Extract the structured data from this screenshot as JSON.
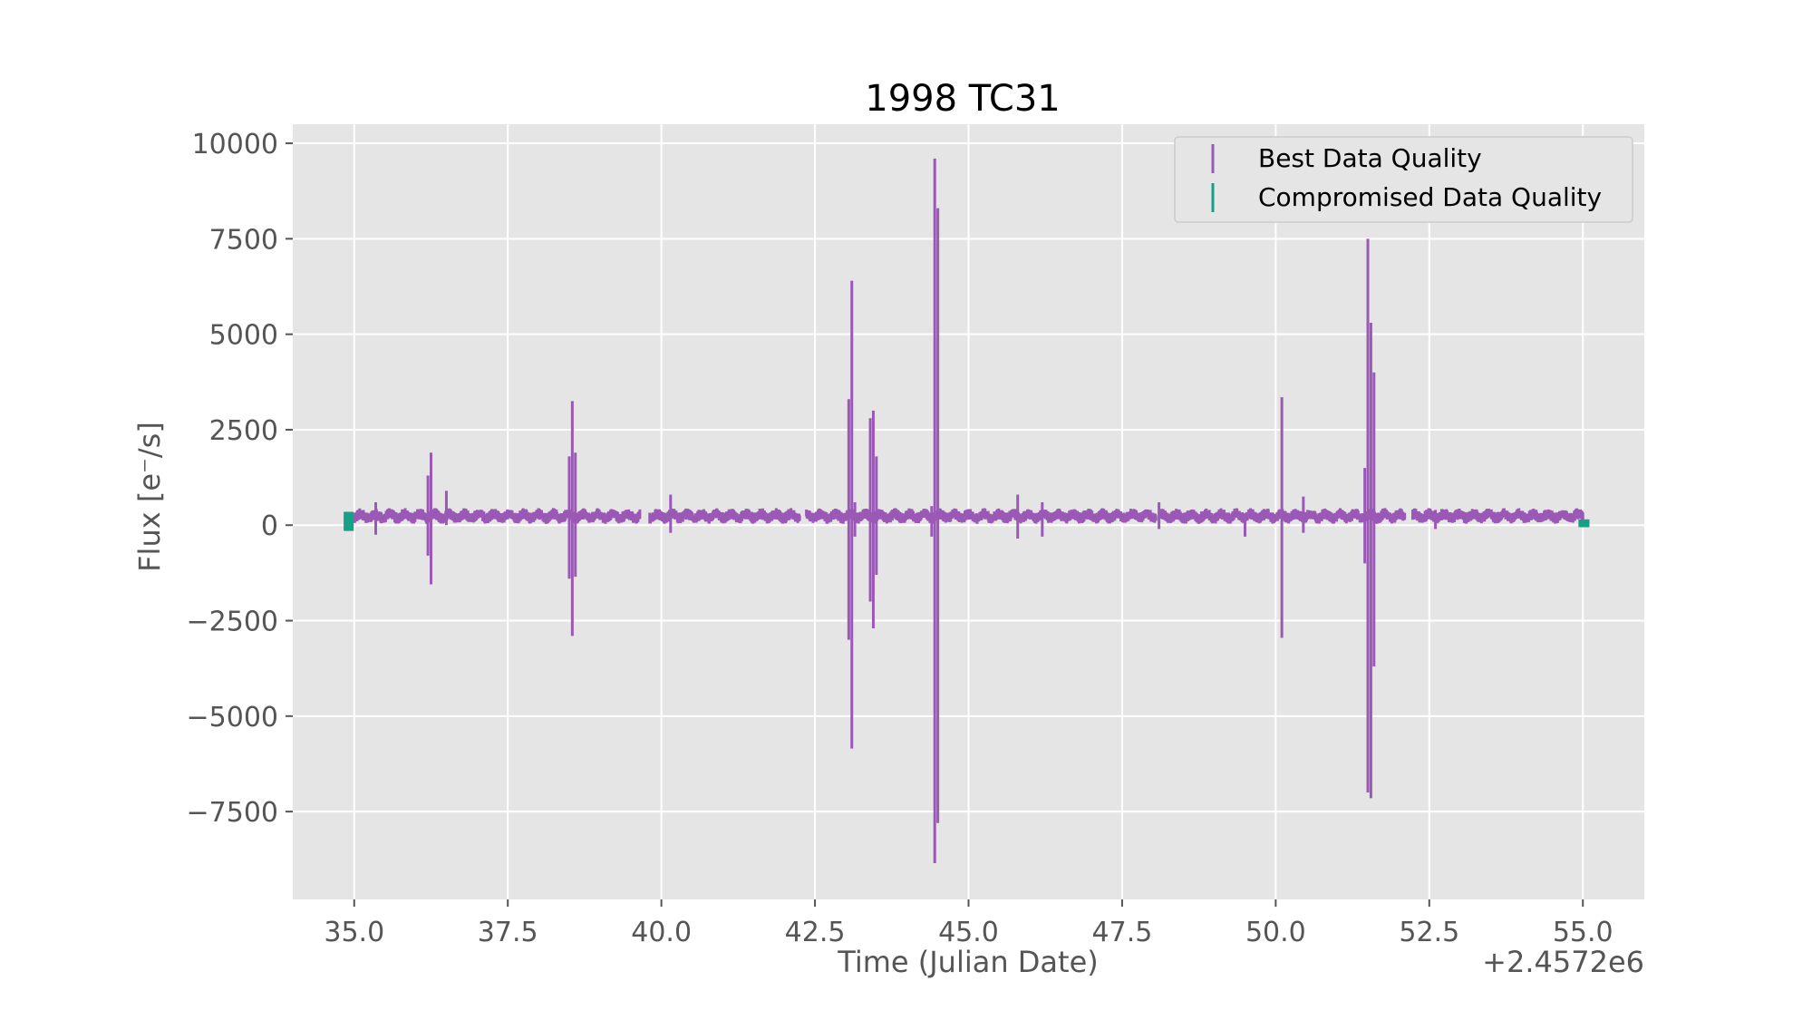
{
  "chart_data": {
    "type": "scatter",
    "title": "1998 TC31",
    "xlabel": "Time (Julian Date)",
    "ylabel": "Flux [e$^-$/s]",
    "ylabel_display": "Flux [e⁻/s]",
    "x_offset_label": "+2.4572e6",
    "xlim": [
      34.0,
      56.0
    ],
    "ylim": [
      -9800,
      10500
    ],
    "xticks": [
      35.0,
      37.5,
      40.0,
      42.5,
      45.0,
      47.5,
      50.0,
      52.5,
      55.0
    ],
    "xtick_labels": [
      "35.0",
      "37.5",
      "40.0",
      "42.5",
      "45.0",
      "47.5",
      "50.0",
      "52.5",
      "55.0"
    ],
    "yticks": [
      10000,
      7500,
      5000,
      2500,
      0,
      -2500,
      -5000,
      -7500
    ],
    "ytick_labels": [
      "10000",
      "7500",
      "5000",
      "2500",
      "0",
      "−2500",
      "−5000",
      "−7500"
    ],
    "grid": true,
    "legend_position": "top-right",
    "series": [
      {
        "name": "Best Data Quality",
        "color": "#9b59b6",
        "baseline_flux": 240,
        "x_range": [
          34.95,
          55.0
        ],
        "spikes": [
          {
            "x": 35.35,
            "high": 600,
            "low": -250
          },
          {
            "x": 36.2,
            "high": 1300,
            "low": -800
          },
          {
            "x": 36.25,
            "high": 1900,
            "low": -1550
          },
          {
            "x": 36.5,
            "high": 900,
            "low": 0
          },
          {
            "x": 38.5,
            "high": 1800,
            "low": -1400
          },
          {
            "x": 38.55,
            "high": 3250,
            "low": -2900
          },
          {
            "x": 38.6,
            "high": 1900,
            "low": -1350
          },
          {
            "x": 40.15,
            "high": 800,
            "low": -200
          },
          {
            "x": 43.05,
            "high": 3300,
            "low": -3000
          },
          {
            "x": 43.1,
            "high": 6400,
            "low": -5850
          },
          {
            "x": 43.15,
            "high": 600,
            "low": -300
          },
          {
            "x": 43.4,
            "high": 2800,
            "low": -2000
          },
          {
            "x": 43.45,
            "high": 3000,
            "low": -2700
          },
          {
            "x": 43.5,
            "high": 1800,
            "low": -1300
          },
          {
            "x": 44.4,
            "high": 500,
            "low": -300
          },
          {
            "x": 44.45,
            "high": 9600,
            "low": -8850
          },
          {
            "x": 44.5,
            "high": 8300,
            "low": -7800
          },
          {
            "x": 45.8,
            "high": 800,
            "low": -350
          },
          {
            "x": 46.2,
            "high": 600,
            "low": -300
          },
          {
            "x": 48.1,
            "high": 600,
            "low": -100
          },
          {
            "x": 49.5,
            "high": 300,
            "low": -300
          },
          {
            "x": 50.1,
            "high": 3350,
            "low": -2950
          },
          {
            "x": 50.45,
            "high": 750,
            "low": -200
          },
          {
            "x": 51.45,
            "high": 1500,
            "low": -1000
          },
          {
            "x": 51.5,
            "high": 7500,
            "low": -7000
          },
          {
            "x": 51.55,
            "high": 5300,
            "low": -7150
          },
          {
            "x": 51.6,
            "high": 4000,
            "low": -3700
          },
          {
            "x": 52.6,
            "high": 400,
            "low": -100
          }
        ]
      },
      {
        "name": "Compromised Data Quality",
        "color": "#16a085",
        "segments": [
          {
            "x_start": 34.85,
            "x_end": 34.98,
            "high": 350,
            "low": -150
          },
          {
            "x_start": 54.95,
            "x_end": 55.1,
            "high": 150,
            "low": -50
          }
        ]
      }
    ]
  }
}
